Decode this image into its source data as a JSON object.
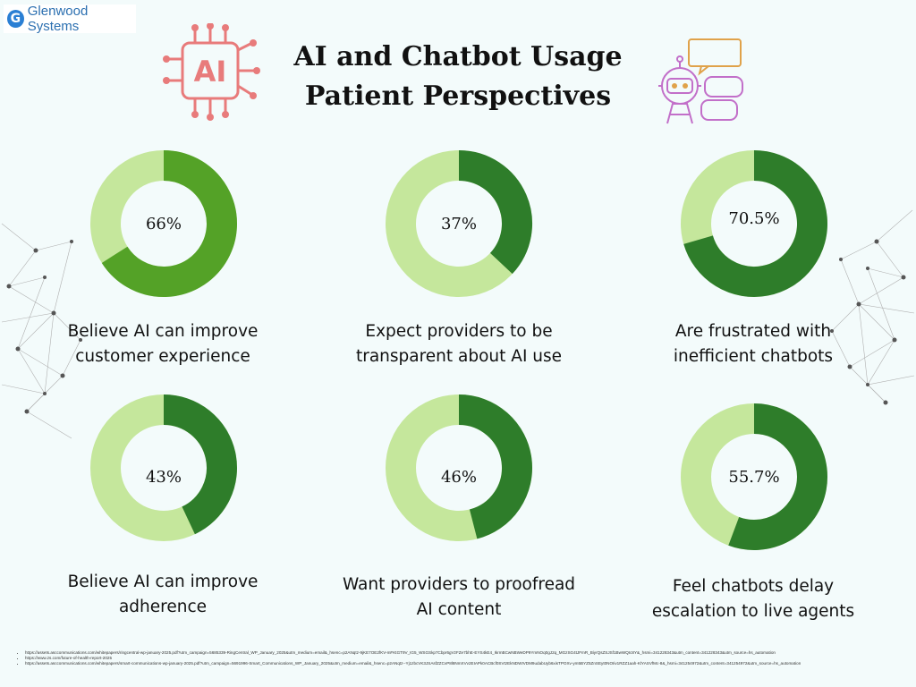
{
  "brand": {
    "name": "Glenwood Systems",
    "mark": "G"
  },
  "title": {
    "line1": "AI and Chatbot Usage",
    "line2": "Patient Perspectives"
  },
  "icons": {
    "left": "ai-chip-icon",
    "right": "chatbot-robot-icon",
    "ai_text": "AI"
  },
  "colors": {
    "track": "#c5e79c",
    "fill_light": "#54a227",
    "fill_dark": "#2e7d2a",
    "background": "#f3fbfb"
  },
  "chart_data": {
    "type": "donut",
    "items": [
      {
        "label_line1": "Believe AI can improve",
        "label_line2": "customer experience",
        "value": 66,
        "value_label": "66%"
      },
      {
        "label_line1": "Expect providers to be",
        "label_line2": "transparent about AI use",
        "value": 37,
        "value_label": "37%"
      },
      {
        "label_line1": "Are frustrated with",
        "label_line2": "inefficient chatbots",
        "value": 70.5,
        "value_label": "70.5%"
      },
      {
        "label_line1": "Believe AI can improve",
        "label_line2": "adherence",
        "value": 43,
        "value_label": "43%"
      },
      {
        "label_line1": "Want providers to proofread",
        "label_line2": "AI content",
        "value": 46,
        "value_label": "46%"
      },
      {
        "label_line1": "Feel chatbots delay",
        "label_line2": "escalation to live agents",
        "value": 55.7,
        "value_label": "55.7%"
      }
    ]
  },
  "references": [
    "https://assets.asccommunications.com/whitepapers/ringcentral-wp-january-2025.pdf?utm_campaign=5685339-RingCentral_WP_January_2025&utm_medium=email&_hsenc=p2ANqtz-9jKE7OE2fKV-mFKtGT9V_IG5_WSGSkp7Cbpr6gVzFZe7bhE-EYS4kE4_IkrmBCwNBWeDP9YmNOq0gJ2q_MGzSG4tJFmR_BiyrQsZSJSf1BwWQIc8Y&_hsmi=341228343&utm_content=341228343&utm_source=hs_automation",
    "https://www.zs.com/future-of-health-report-2025",
    "https://assets.asccommunications.com/whitepapers/smart-communications-wp-january-2025.pdf?utm_campaign=5691996-Smart_Communications_WP_January_2025&utm_medium=email&_hsenc=p2ANqtz--Yj1zbcVK3JSAsfZZCvP8l8NmXVv2EIAPk0ACBcf0SVtzEkNDWIVDM9udabUyb6xisTPOXv-ym5BYZ5ZnSEyt0NOIiv1RZZ1aah-KlYASVfMc-8&_hsmi=341254972&utm_content=341254972&utm_source=hs_automation"
  ]
}
